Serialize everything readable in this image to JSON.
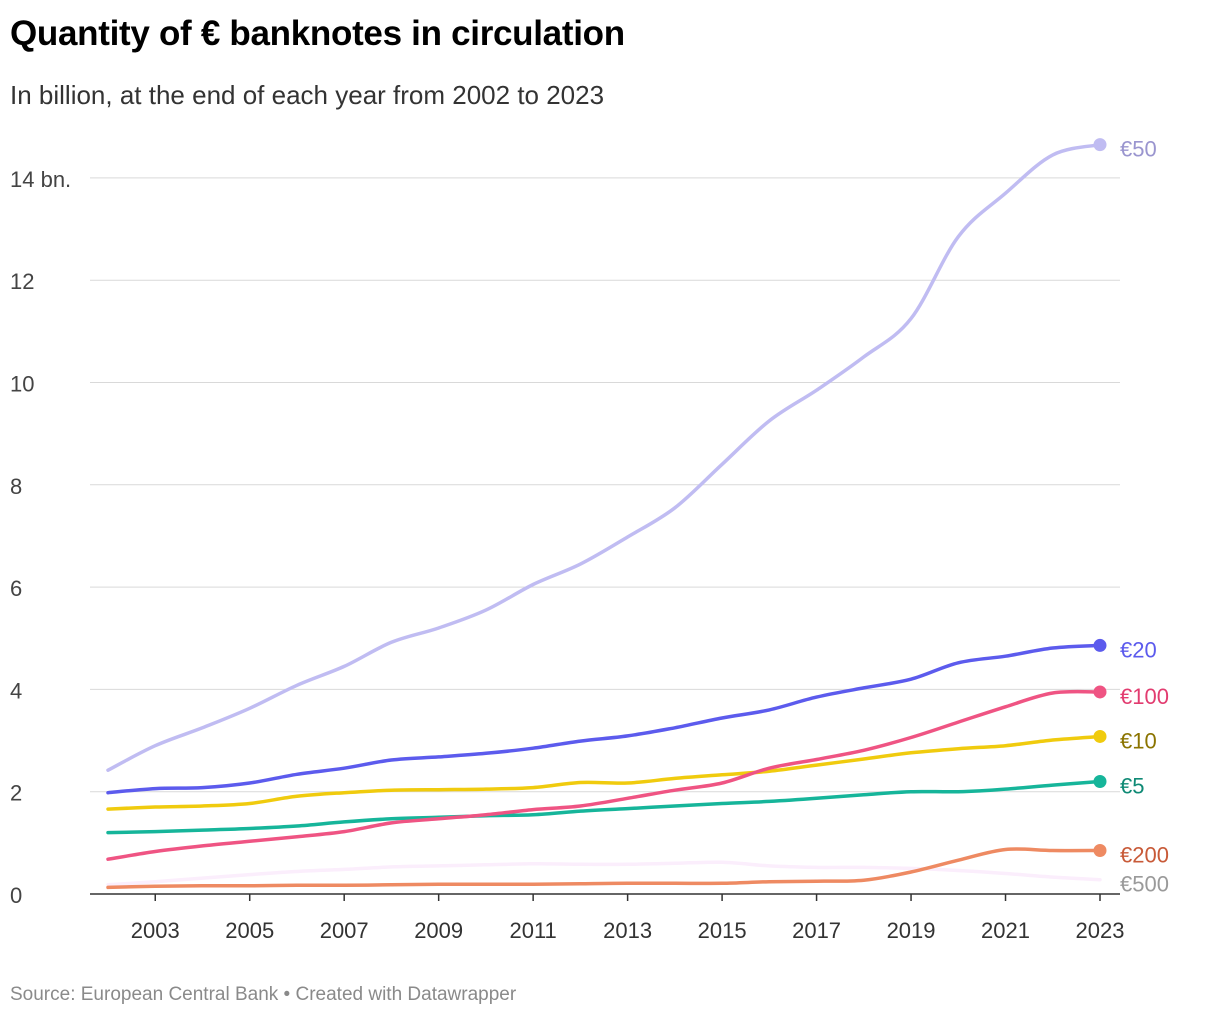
{
  "header": {
    "title": "Quantity of € banknotes in circulation",
    "subtitle": "In billion, at the end of each year from 2002 to 2023"
  },
  "footer": {
    "source": "Source: European Central Bank • Created with Datawrapper"
  },
  "chart_data": {
    "type": "line",
    "title": "Quantity of € banknotes in circulation",
    "subtitle": "In billion, at the end of each year from 2002 to 2023",
    "xlabel": "",
    "ylabel": "",
    "x": [
      2002,
      2003,
      2004,
      2005,
      2006,
      2007,
      2008,
      2009,
      2010,
      2011,
      2012,
      2013,
      2014,
      2015,
      2016,
      2017,
      2018,
      2019,
      2020,
      2021,
      2022,
      2023
    ],
    "xticks": [
      "2003",
      "2005",
      "2007",
      "2009",
      "2011",
      "2013",
      "2015",
      "2017",
      "2019",
      "2021",
      "2023"
    ],
    "yticks": [
      "0",
      "2",
      "4",
      "6",
      "8",
      "10",
      "12",
      "14 bn."
    ],
    "ylim": [
      0,
      14.5
    ],
    "xlim": [
      2002,
      2023
    ],
    "grid": true,
    "legend": "inline labels at line ends",
    "series": [
      {
        "name": "€50",
        "color": "#c0bcf2",
        "label_color": "#9a95cf",
        "end_marker": true,
        "values": [
          2.42,
          2.9,
          3.25,
          3.63,
          4.08,
          4.45,
          4.92,
          5.2,
          5.55,
          6.05,
          6.45,
          6.98,
          7.55,
          8.4,
          9.25,
          9.85,
          10.5,
          11.25,
          12.85,
          13.7,
          14.45,
          14.65
        ]
      },
      {
        "name": "€20",
        "color": "#5c5bed",
        "label_color": "#5c5bed",
        "end_marker": true,
        "values": [
          1.98,
          2.06,
          2.08,
          2.17,
          2.34,
          2.46,
          2.62,
          2.68,
          2.75,
          2.85,
          2.99,
          3.09,
          3.25,
          3.44,
          3.6,
          3.85,
          4.03,
          4.2,
          4.52,
          4.65,
          4.81,
          4.86
        ]
      },
      {
        "name": "€100",
        "color": "#ef5483",
        "label_color": "#e23c70",
        "end_marker": true,
        "values": [
          0.68,
          0.83,
          0.94,
          1.03,
          1.12,
          1.22,
          1.39,
          1.47,
          1.55,
          1.65,
          1.72,
          1.87,
          2.03,
          2.17,
          2.46,
          2.63,
          2.81,
          3.06,
          3.36,
          3.66,
          3.93,
          3.95
        ]
      },
      {
        "name": "€10",
        "color": "#f0cb0e",
        "label_color": "#8b7400",
        "end_marker": true,
        "values": [
          1.66,
          1.7,
          1.72,
          1.77,
          1.91,
          1.98,
          2.03,
          2.04,
          2.05,
          2.08,
          2.18,
          2.17,
          2.26,
          2.33,
          2.4,
          2.52,
          2.64,
          2.76,
          2.84,
          2.9,
          3.01,
          3.08
        ]
      },
      {
        "name": "€5",
        "color": "#16b59a",
        "label_color": "#0f8a75",
        "end_marker": true,
        "values": [
          1.2,
          1.22,
          1.25,
          1.28,
          1.33,
          1.41,
          1.47,
          1.5,
          1.53,
          1.55,
          1.62,
          1.67,
          1.72,
          1.77,
          1.81,
          1.87,
          1.94,
          2.0,
          2.0,
          2.05,
          2.13,
          2.2
        ]
      },
      {
        "name": "€200",
        "color": "#ee8a62",
        "label_color": "#c85a38",
        "end_marker": true,
        "values": [
          0.13,
          0.15,
          0.16,
          0.16,
          0.17,
          0.17,
          0.18,
          0.19,
          0.19,
          0.19,
          0.2,
          0.21,
          0.21,
          0.21,
          0.24,
          0.25,
          0.27,
          0.43,
          0.66,
          0.87,
          0.85,
          0.85
        ]
      },
      {
        "name": "€500",
        "color": "#fbeefc",
        "label_color": "#9a9a9a",
        "end_marker": false,
        "values": [
          0.18,
          0.24,
          0.31,
          0.38,
          0.44,
          0.48,
          0.53,
          0.55,
          0.57,
          0.59,
          0.58,
          0.58,
          0.6,
          0.62,
          0.55,
          0.52,
          0.52,
          0.5,
          0.46,
          0.4,
          0.33,
          0.28
        ]
      }
    ]
  }
}
